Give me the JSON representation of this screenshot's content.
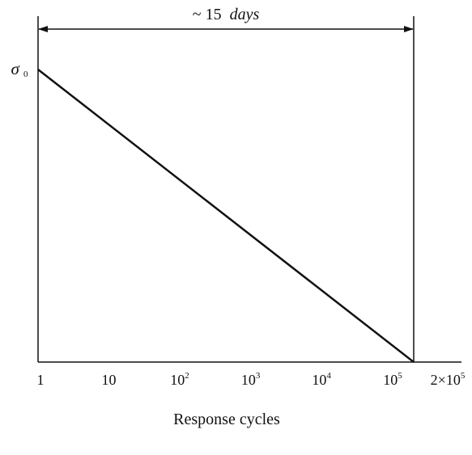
{
  "chart_data": {
    "type": "line",
    "xlabel": "Response cycles",
    "ylabel": "",
    "x_scale": "log",
    "xlim": [
      1,
      200000
    ],
    "ylim": [
      0,
      1
    ],
    "x_ticks": [
      {
        "value": 1,
        "base": "1",
        "exp": ""
      },
      {
        "value": 10,
        "base": "10",
        "exp": ""
      },
      {
        "value": 100,
        "base": "10",
        "exp": "2"
      },
      {
        "value": 1000,
        "base": "10",
        "exp": "3"
      },
      {
        "value": 10000,
        "base": "10",
        "exp": "4"
      },
      {
        "value": 100000,
        "base": "10",
        "exp": "5"
      },
      {
        "value": 200000,
        "base": "2×10",
        "exp": "5"
      }
    ],
    "y_label_top": {
      "symbol": "σ",
      "subscript": "0"
    },
    "series": [
      {
        "x": [
          1,
          200000
        ],
        "y": [
          1,
          0
        ]
      }
    ],
    "annotation": {
      "type": "double-arrow",
      "from_x": 1,
      "to_x": 200000,
      "prefix": "~ 15",
      "italic": "days"
    },
    "grid": false,
    "legend": "none"
  }
}
